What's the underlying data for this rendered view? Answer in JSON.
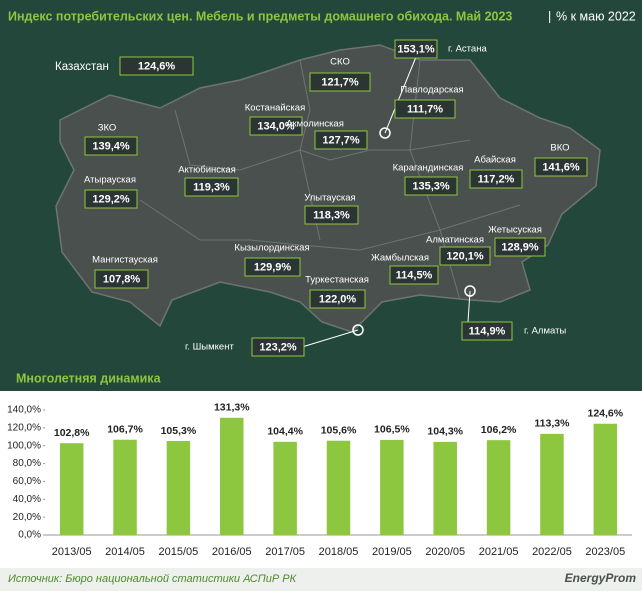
{
  "header": {
    "title": "Индекс потребительских цен. Мебель и предметы домашнего обихода. Май 2023",
    "subtitle": "% к маю 2022"
  },
  "map": {
    "regions": [
      {
        "name": "Казахстан",
        "value": "124,6%"
      },
      {
        "name": "СКО",
        "value": "121,7%"
      },
      {
        "name": "г. Астана",
        "value": "153,1%"
      },
      {
        "name": "Павлодарская",
        "value": "111,7%"
      },
      {
        "name": "Костанайская",
        "value": "134,0%"
      },
      {
        "name": "Акмолинская",
        "value": "127,7%"
      },
      {
        "name": "ЗКО",
        "value": "139,4%"
      },
      {
        "name": "Актюбинская",
        "value": "119,3%"
      },
      {
        "name": "Атырауская",
        "value": "129,2%"
      },
      {
        "name": "ВКО",
        "value": "141,6%"
      },
      {
        "name": "Абайская",
        "value": "117,2%"
      },
      {
        "name": "Карагандинская",
        "value": "135,3%"
      },
      {
        "name": "Улытауская",
        "value": "118,3%"
      },
      {
        "name": "Жетысуская",
        "value": "128,9%"
      },
      {
        "name": "Алматинская",
        "value": "120,1%"
      },
      {
        "name": "Мангистауская",
        "value": "107,8%"
      },
      {
        "name": "Кызылординская",
        "value": "129,9%"
      },
      {
        "name": "Жамбылская",
        "value": "114,5%"
      },
      {
        "name": "Туркестанская",
        "value": "122,0%"
      },
      {
        "name": "г. Алматы",
        "value": "114,9%"
      },
      {
        "name": "г. Шымкент",
        "value": "123,2%"
      }
    ]
  },
  "chart_data": {
    "type": "bar",
    "title": "Многолетняя динамика",
    "categories": [
      "2013/05",
      "2014/05",
      "2015/05",
      "2016/05",
      "2017/05",
      "2018/05",
      "2019/05",
      "2020/05",
      "2021/05",
      "2022/05",
      "2023/05"
    ],
    "values": [
      102.8,
      106.7,
      105.3,
      131.3,
      104.4,
      105.6,
      106.5,
      104.3,
      106.2,
      113.3,
      124.6
    ],
    "value_labels": [
      "102,8%",
      "106,7%",
      "105,3%",
      "131,3%",
      "104,4%",
      "105,6%",
      "106,5%",
      "104,3%",
      "106,2%",
      "113,3%",
      "124,6%"
    ],
    "color": "#8dc63f",
    "ylim": [
      0,
      140
    ],
    "yticks": [
      {
        "value": 0,
        "label": "0,0%"
      },
      {
        "value": 20,
        "label": "20,0%"
      },
      {
        "value": 40,
        "label": "40,0%"
      },
      {
        "value": 60,
        "label": "60,0%"
      },
      {
        "value": 80,
        "label": "80,0%"
      },
      {
        "value": 100,
        "label": "100,0%"
      },
      {
        "value": 120,
        "label": "120,0%"
      },
      {
        "value": 140,
        "label": "140,0%"
      }
    ]
  },
  "footer": {
    "source": "Источник: Бюро национальной статистики АСПиР РК",
    "logo": "EnergyProm"
  }
}
